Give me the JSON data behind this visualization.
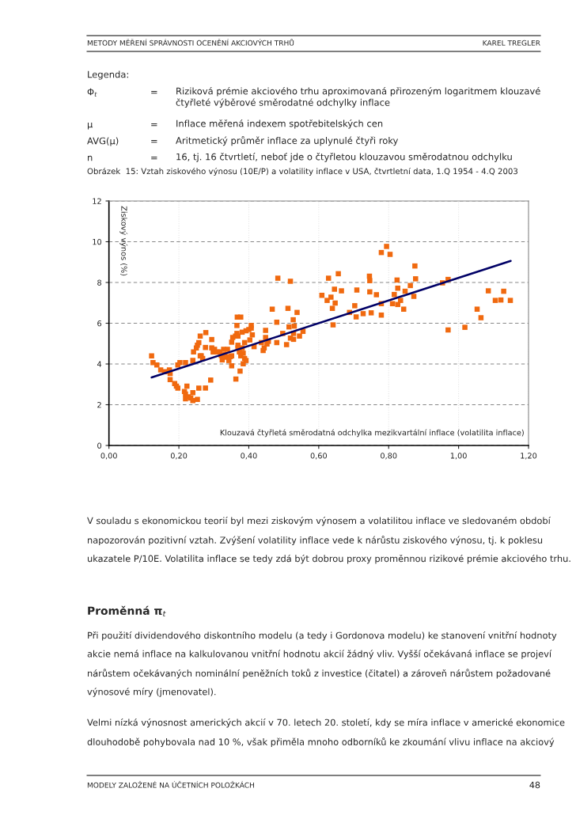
{
  "chart_data": {
    "type": "scatter",
    "title": "Obrázek  15: Vztah ziskového výnosu (10E/P) a volatility inflace v USA, čtvrtletní data, 1.Q 1954 - 4.Q 2003",
    "xlabel": "Klouzavá čtyřletá směrodatná odchylka mezikvartální inflace (volatilita inflace)",
    "ylabel": "Ziskový výnos (%)",
    "xlim": [
      0,
      1.2
    ],
    "ylim": [
      0,
      12
    ],
    "xticks": [
      {
        "value": 0,
        "label": "0,00"
      },
      {
        "value": 0.2,
        "label": "0,20"
      },
      {
        "value": 0.4,
        "label": "0,40"
      },
      {
        "value": 0.6,
        "label": "0,60"
      },
      {
        "value": 0.8,
        "label": "0,80"
      },
      {
        "value": 1.0,
        "label": "1,00"
      },
      {
        "value": 1.2,
        "label": "1,20"
      }
    ],
    "yticks": [
      0,
      2,
      4,
      6,
      8,
      10,
      12
    ],
    "grid": true,
    "marker": "square",
    "series": [
      {
        "color": "#f0690f",
        "x": [
          0.122,
          0.126,
          0.137,
          0.148,
          0.16,
          0.173,
          0.175,
          0.175,
          0.188,
          0.193,
          0.197,
          0.197,
          0.203,
          0.216,
          0.219,
          0.219,
          0.219,
          0.223,
          0.227,
          0.234,
          0.24,
          0.24,
          0.253,
          0.257,
          0.276,
          0.291,
          0.24,
          0.242,
          0.25,
          0.253,
          0.257,
          0.261,
          0.261,
          0.264,
          0.268,
          0.276,
          0.277,
          0.294,
          0.294,
          0.298,
          0.302,
          0.31,
          0.317,
          0.321,
          0.324,
          0.328,
          0.332,
          0.335,
          0.339,
          0.343,
          0.347,
          0.351,
          0.351,
          0.351,
          0.354,
          0.362,
          0.363,
          0.366,
          0.366,
          0.369,
          0.367,
          0.369,
          0.369,
          0.373,
          0.375,
          0.377,
          0.377,
          0.381,
          0.381,
          0.384,
          0.384,
          0.388,
          0.388,
          0.392,
          0.392,
          0.4,
          0.403,
          0.407,
          0.407,
          0.41,
          0.415,
          0.436,
          0.441,
          0.444,
          0.448,
          0.448,
          0.452,
          0.456,
          0.467,
          0.48,
          0.48,
          0.483,
          0.497,
          0.508,
          0.512,
          0.515,
          0.519,
          0.519,
          0.527,
          0.528,
          0.528,
          0.53,
          0.538,
          0.545,
          0.555,
          0.609,
          0.624,
          0.628,
          0.635,
          0.639,
          0.641,
          0.645,
          0.647,
          0.656,
          0.665,
          0.688,
          0.703,
          0.707,
          0.709,
          0.727,
          0.745,
          0.746,
          0.746,
          0.75,
          0.765,
          0.779,
          0.779,
          0.779,
          0.794,
          0.804,
          0.811,
          0.816,
          0.824,
          0.826,
          0.826,
          0.834,
          0.843,
          0.847,
          0.862,
          0.872,
          0.875,
          0.877,
          0.954,
          0.97,
          0.97,
          1.018,
          1.053,
          1.064,
          1.085,
          1.105,
          1.121,
          1.129,
          1.148
        ],
        "values": [
          4.4,
          4.07,
          3.95,
          3.71,
          3.62,
          3.71,
          3.53,
          3.23,
          3.04,
          2.91,
          2.82,
          3.95,
          4.07,
          2.65,
          2.52,
          2.29,
          4.07,
          2.91,
          2.39,
          2.33,
          2.59,
          2.2,
          2.26,
          2.82,
          2.82,
          3.21,
          4.17,
          4.59,
          4.79,
          4.92,
          5.05,
          5.37,
          4.4,
          4.4,
          4.27,
          4.81,
          5.54,
          5.2,
          4.79,
          4.59,
          4.72,
          4.59,
          4.59,
          4.42,
          4.2,
          4.72,
          4.46,
          4.33,
          4.72,
          4.17,
          4.36,
          4.4,
          3.91,
          5.07,
          5.3,
          5.37,
          3.26,
          5.89,
          5.5,
          5.37,
          6.3,
          4.92,
          4.79,
          4.59,
          3.65,
          6.3,
          4.4,
          5.56,
          4.79,
          4.01,
          4.53,
          4.27,
          5.05,
          5.63,
          4.17,
          5.69,
          5.18,
          5.89,
          5.76,
          5.43,
          4.85,
          5.05,
          4.66,
          4.79,
          5.3,
          5.65,
          4.98,
          5.11,
          6.69,
          6.05,
          5.05,
          8.21,
          5.5,
          4.95,
          6.73,
          5.82,
          8.06,
          5.27,
          6.17,
          5.5,
          5.21,
          5.86,
          6.53,
          5.37,
          5.6,
          7.37,
          7.12,
          8.21,
          7.28,
          6.73,
          5.92,
          7.67,
          6.99,
          8.43,
          7.59,
          6.53,
          6.86,
          6.31,
          7.63,
          6.47,
          8.31,
          8.09,
          7.54,
          6.51,
          7.4,
          9.47,
          6.96,
          6.4,
          9.77,
          9.38,
          6.96,
          7.41,
          8.12,
          7.72,
          6.92,
          7.12,
          6.69,
          7.57,
          7.85,
          7.32,
          8.81,
          8.18,
          7.98,
          8.15,
          5.67,
          5.8,
          6.69,
          6.27,
          7.59,
          7.12,
          7.14,
          7.57,
          7.12
        ]
      },
      {
        "type": "line",
        "marker": "none",
        "color": "#000066",
        "x": [
          0.122,
          1.149
        ],
        "values": [
          3.34,
          9.06
        ]
      }
    ],
    "annotations": [
      "METODY MĚŘENÍ SPRÁVNOSTI OCENĚNÍ AKCIOVÝCH TRHŮ",
      "KAREL TREGLER",
      "Legenda:",
      "Φ$_{t}$",
      "=",
      "Riziková prémie akciového trhu aproximovaná přirozeným logaritmem klouzavé čtyřleté výběrové směrodatné odchylky inflace",
      "μ",
      "=",
      "Inflace měřená indexem spotřebitelských cen",
      "AVG(μ)",
      "=",
      "Aritmetický průměr inflace za uplynulé čtyři roky",
      "n",
      "=",
      "16, tj. 16 čtvrtletí, neboť jde o čtyřletou klouzavou směrodatnou odchylku",
      "V souladu s ekonomickou teorií byl mezi ziskovým výnosem a volatilitou inflace ve sledovaném období napozorován pozitivní vztah. Zvýšení volatility inflace vede k nárůstu ziskového výnosu, tj. k poklesu ukazatele P/10E. Volatilita inflace se tedy zdá být dobrou proxy proměnnou rizikové prémie akciového trhu.",
      "Proměnná π$_{t}$",
      "Při použití dividendového diskontního modelu (a tedy i Gordonova modelu) ke stanovení vnitřní hodnoty akcie nemá inflace na kalkulovanou vnitřní hodnotu akcií žádný vliv. Vyšší očekávaná inflace se projeví nárůstem očekávaných nominální peněžních toků z investice (čitatel) a zároveň nárůstem požadované výnosové míry (jmenovatel).",
      "Velmi nízká výnosnost amerických akcií v 70. letech 20. století, kdy se míra inflace v americké ekonomice dlouhodobě pohybovala nad 10 %, však přiměla mnoho odborníků ke zkoumání vlivu inflace na akciový",
      "MODELY ZALOŽENÉ NA ÚČETNÍCH POLOŽKÁCH",
      "48"
    ]
  }
}
